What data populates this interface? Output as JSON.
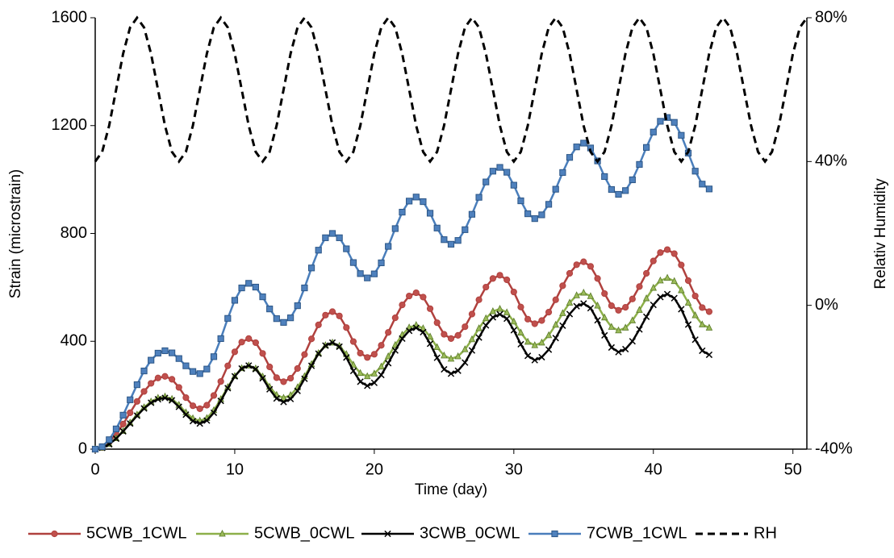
{
  "chart_data": {
    "type": "line",
    "x_label": "Time (day)",
    "y_label": "Strain (microstrain)",
    "y2_label": "Relativ Humidity",
    "xlim": [
      0,
      51
    ],
    "xticks": [
      0,
      10,
      20,
      30,
      40,
      50
    ],
    "ylim": [
      0,
      1600
    ],
    "yticks": [
      0,
      400,
      800,
      1200,
      1600
    ],
    "y2lim": [
      -40,
      80
    ],
    "y2ticks": [
      {
        "value": -40,
        "label": "-40%"
      },
      {
        "value": 0,
        "label": "0%"
      },
      {
        "value": 40,
        "label": "40%"
      },
      {
        "value": 80,
        "label": "80%"
      }
    ],
    "legend": "bottom",
    "x": [
      0,
      0.5,
      1,
      1.5,
      2,
      2.5,
      3,
      3.5,
      4,
      4.5,
      5,
      5.5,
      6,
      6.5,
      7,
      7.5,
      8,
      8.5,
      9,
      9.5,
      10,
      10.5,
      11,
      11.5,
      12,
      12.5,
      13,
      13.5,
      14,
      14.5,
      15,
      15.5,
      16,
      16.5,
      17,
      17.5,
      18,
      18.5,
      19,
      19.5,
      20,
      20.5,
      21,
      21.5,
      22,
      22.5,
      23,
      23.5,
      24,
      24.5,
      25,
      25.5,
      26,
      26.5,
      27,
      27.5,
      28,
      28.5,
      29,
      29.5,
      30,
      30.5,
      31,
      31.5,
      32,
      32.5,
      33,
      33.5,
      34,
      34.5,
      35,
      35.5,
      36,
      36.5,
      37,
      37.5,
      38,
      38.5,
      39,
      39.5,
      40,
      40.5,
      41,
      41.5,
      42,
      42.5,
      43,
      43.5,
      44
    ],
    "series": [
      {
        "name": "5CWB_1CWL",
        "color": "#b0413e",
        "marker": "circle",
        "marker_fill": "#c0504d",
        "values": [
          0,
          6,
          26,
          56,
          93,
          135,
          177,
          214,
          244,
          264,
          270,
          259,
          229,
          191,
          161,
          150,
          163,
          199,
          251,
          309,
          361,
          397,
          410,
          395,
          355,
          305,
          265,
          250,
          263,
          299,
          351,
          409,
          461,
          497,
          510,
          494,
          451,
          399,
          356,
          340,
          352,
          385,
          433,
          487,
          535,
          568,
          580,
          564,
          521,
          469,
          426,
          410,
          422,
          454,
          501,
          554,
          601,
          633,
          645,
          628,
          583,
          527,
          482,
          465,
          477,
          508,
          554,
          606,
          652,
          684,
          695,
          678,
          633,
          577,
          532,
          515,
          526,
          557,
          603,
          652,
          698,
          729,
          740,
          725,
          683,
          625,
          568,
          525,
          510
        ]
      },
      {
        "name": "5CWB_0CWL",
        "color": "#8db04a",
        "marker": "triangle",
        "marker_fill": "#9bbb59",
        "values": [
          0,
          5,
          19,
          40,
          67,
          98,
          128,
          155,
          176,
          190,
          195,
          186,
          164,
          136,
          114,
          105,
          115,
          144,
          185,
          230,
          271,
          300,
          310,
          299,
          269,
          231,
          201,
          190,
          200,
          229,
          270,
          315,
          356,
          385,
          395,
          383,
          352,
          313,
          282,
          270,
          280,
          306,
          344,
          386,
          424,
          451,
          460,
          448,
          417,
          378,
          347,
          335,
          344,
          370,
          407,
          448,
          485,
          511,
          520,
          507,
          473,
          432,
          398,
          385,
          395,
          422,
          461,
          504,
          543,
          570,
          580,
          567,
          532,
          488,
          453,
          440,
          450,
          477,
          516,
          559,
          598,
          625,
          635,
          623,
          589,
          543,
          496,
          462,
          450
        ]
      },
      {
        "name": "3CWB_0CWL",
        "color": "#000000",
        "marker": "x",
        "marker_fill": "#000000",
        "values": [
          0,
          5,
          18,
          39,
          66,
          95,
          124,
          151,
          172,
          185,
          190,
          181,
          157,
          128,
          104,
          95,
          106,
          135,
          179,
          226,
          270,
          299,
          310,
          297,
          263,
          222,
          188,
          175,
          186,
          216,
          261,
          309,
          354,
          384,
          395,
          380,
          340,
          290,
          250,
          235,
          246,
          275,
          319,
          366,
          410,
          439,
          450,
          434,
          391,
          339,
          296,
          280,
          291,
          321,
          366,
          414,
          459,
          489,
          500,
          484,
          441,
          389,
          346,
          330,
          341,
          369,
          412,
          458,
          501,
          530,
          540,
          523,
          478,
          422,
          377,
          360,
          371,
          400,
          444,
          491,
          535,
          564,
          575,
          560,
          519,
          462,
          406,
          365,
          350
        ]
      },
      {
        "name": "7CWB_1CWL",
        "color": "#4a7ebb",
        "marker": "square",
        "marker_fill": "#4f81bd",
        "values": [
          0,
          9,
          35,
          75,
          126,
          183,
          239,
          290,
          330,
          356,
          365,
          357,
          336,
          309,
          288,
          280,
          297,
          343,
          410,
          485,
          552,
          598,
          615,
          601,
          565,
          520,
          484,
          470,
          487,
          532,
          598,
          672,
          738,
          784,
          800,
          784,
          743,
          692,
          651,
          635,
          650,
          691,
          752,
          818,
          879,
          920,
          935,
          918,
          875,
          820,
          777,
          760,
          774,
          814,
          871,
          934,
          991,
          1031,
          1045,
          1027,
          979,
          921,
          873,
          855,
          869,
          908,
          964,
          1026,
          1082,
          1121,
          1135,
          1117,
          1069,
          1011,
          963,
          945,
          959,
          999,
          1056,
          1119,
          1176,
          1216,
          1230,
          1212,
          1164,
          1098,
          1031,
          983,
          965
        ]
      },
      {
        "name": "RH",
        "color": "#000000",
        "marker": "none",
        "line_style": "dashed",
        "axis": "y2",
        "x": [
          0,
          0.5,
          1,
          1.5,
          2,
          2.5,
          3,
          3.5,
          4,
          4.5,
          5,
          5.5,
          6,
          6.5,
          7,
          7.5,
          8,
          8.5,
          9,
          9.5,
          10,
          10.5,
          11,
          11.5,
          12,
          12.5,
          13,
          13.5,
          14,
          14.5,
          15,
          15.5,
          16,
          16.5,
          17,
          17.5,
          18,
          18.5,
          19,
          19.5,
          20,
          20.5,
          21,
          21.5,
          22,
          22.5,
          23,
          23.5,
          24,
          24.5,
          25,
          25.5,
          26,
          26.5,
          27,
          27.5,
          28,
          28.5,
          29,
          29.5,
          30,
          30.5,
          31,
          31.5,
          32,
          32.5,
          33,
          33.5,
          34,
          34.5,
          35,
          35.5,
          36,
          36.5,
          37,
          37.5,
          38,
          38.5,
          39,
          39.5,
          40,
          40.5,
          41,
          41.5,
          42,
          42.5,
          43,
          43.5,
          44,
          44.5,
          45,
          45.5,
          46,
          46.5,
          47,
          47.5,
          48,
          48.5,
          49,
          49.5,
          50,
          50.5,
          51
        ],
        "values": [
          40,
          42.7,
          50,
          60,
          70,
          77.3,
          80,
          77.3,
          70,
          60,
          50,
          42.7,
          40,
          42.7,
          50,
          60,
          70,
          77.3,
          80,
          77.3,
          70,
          60,
          50,
          42.7,
          40,
          42.7,
          50,
          60,
          70,
          77.3,
          80,
          77.3,
          70,
          60,
          50,
          42.7,
          40,
          42.7,
          50,
          60,
          70,
          77.3,
          80,
          77.3,
          70,
          60,
          50,
          42.7,
          40,
          42.7,
          50,
          60,
          70,
          77.3,
          80,
          77.3,
          70,
          60,
          50,
          42.7,
          40,
          42.7,
          50,
          60,
          70,
          77.3,
          80,
          77.3,
          70,
          60,
          50,
          42.7,
          40,
          42.7,
          50,
          60,
          70,
          77.3,
          80,
          77.3,
          70,
          60,
          50,
          42.7,
          40,
          42.7,
          50,
          60,
          70,
          77.3,
          80,
          77.3,
          70,
          60,
          50,
          42.7,
          40,
          42.7,
          50,
          60,
          70,
          77.3,
          80
        ]
      }
    ]
  }
}
